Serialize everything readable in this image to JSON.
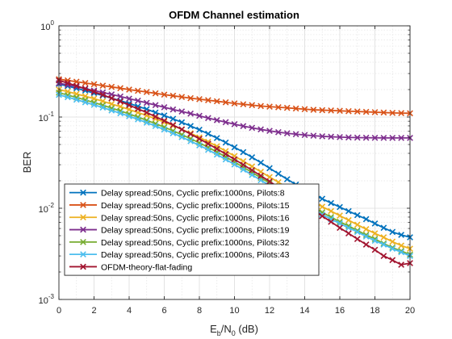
{
  "chart_data": {
    "type": "line",
    "title": "OFDM Channel estimation",
    "xlabel": {
      "base": "E",
      "sub1": "b",
      "mid": "/N",
      "sub2": "0",
      "tail": " (dB)"
    },
    "ylabel": "BER",
    "xlim": [
      0,
      20
    ],
    "ylim": [
      0.001,
      1
    ],
    "yscale": "log",
    "grid": true,
    "minor_grid": true,
    "legend_position": "bottom-left",
    "x_ticks": [
      0,
      2,
      4,
      6,
      8,
      10,
      12,
      14,
      16,
      18,
      20
    ],
    "x_tick_labels": [
      "0",
      "2",
      "4",
      "6",
      "8",
      "10",
      "12",
      "14",
      "16",
      "18",
      "20"
    ],
    "y_ticks": [
      {
        "value": 1,
        "base": "10",
        "exp": "0"
      },
      {
        "value": 0.1,
        "base": "10",
        "exp": "-1"
      },
      {
        "value": 0.01,
        "base": "10",
        "exp": "-2"
      },
      {
        "value": 0.001,
        "base": "10",
        "exp": "-3"
      }
    ],
    "x": [
      0,
      0.5,
      1,
      1.5,
      2,
      2.5,
      3,
      3.5,
      4,
      4.5,
      5,
      5.5,
      6,
      6.5,
      7,
      7.5,
      8,
      8.5,
      9,
      9.5,
      10,
      10.5,
      11,
      11.5,
      12,
      12.5,
      13,
      13.5,
      14,
      14.5,
      15,
      15.5,
      16,
      16.5,
      17,
      17.5,
      18,
      18.5,
      19,
      19.5,
      20
    ],
    "series": [
      {
        "name": "Delay spread:50ns, Cyclic prefix:1000ns, Pilots:8",
        "color": "#0072BD",
        "values": [
          0.23,
          0.218,
          0.206,
          0.195,
          0.183,
          0.172,
          0.161,
          0.151,
          0.141,
          0.131,
          0.122,
          0.112,
          0.104,
          0.0955,
          0.0875,
          0.0798,
          0.0725,
          0.0655,
          0.0588,
          0.0525,
          0.0466,
          0.0412,
          0.0362,
          0.0316,
          0.0275,
          0.0239,
          0.0208,
          0.0182,
          0.016,
          0.0142,
          0.0127,
          0.0114,
          0.0103,
          0.0093,
          0.0084,
          0.0076,
          0.0068,
          0.0061,
          0.0055,
          0.0051,
          0.0048
        ]
      },
      {
        "name": "Delay spread:50ns, Cyclic prefix:1000ns, Pilots:15",
        "color": "#D95319",
        "values": [
          0.26,
          0.252,
          0.244,
          0.236,
          0.229,
          0.221,
          0.214,
          0.207,
          0.2,
          0.194,
          0.188,
          0.182,
          0.176,
          0.171,
          0.166,
          0.161,
          0.157,
          0.153,
          0.149,
          0.145,
          0.141,
          0.138,
          0.135,
          0.132,
          0.13,
          0.128,
          0.126,
          0.124,
          0.122,
          0.12,
          0.119,
          0.118,
          0.117,
          0.116,
          0.115,
          0.114,
          0.113,
          0.112,
          0.111,
          0.1105,
          0.11
        ]
      },
      {
        "name": "Delay spread:50ns, Cyclic prefix:1000ns, Pilots:16",
        "color": "#EDB120",
        "values": [
          0.2,
          0.19,
          0.179,
          0.169,
          0.159,
          0.149,
          0.139,
          0.13,
          0.121,
          0.112,
          0.104,
          0.0957,
          0.0879,
          0.0804,
          0.0732,
          0.0664,
          0.0598,
          0.0536,
          0.0478,
          0.0423,
          0.0373,
          0.0328,
          0.0287,
          0.0251,
          0.022,
          0.0193,
          0.0169,
          0.0149,
          0.0132,
          0.0117,
          0.0104,
          0.0093,
          0.0083,
          0.0074,
          0.0066,
          0.0059,
          0.0053,
          0.0048,
          0.0043,
          0.0039,
          0.0036
        ]
      },
      {
        "name": "Delay spread:50ns, Cyclic prefix:1000ns, Pilots:19",
        "color": "#7E2F8E",
        "values": [
          0.235,
          0.225,
          0.215,
          0.205,
          0.195,
          0.186,
          0.177,
          0.168,
          0.159,
          0.151,
          0.143,
          0.135,
          0.128,
          0.121,
          0.115,
          0.109,
          0.103,
          0.0975,
          0.0925,
          0.0878,
          0.0835,
          0.0796,
          0.0762,
          0.0732,
          0.0706,
          0.0683,
          0.0664,
          0.0648,
          0.0635,
          0.0624,
          0.0615,
          0.0608,
          0.0602,
          0.0598,
          0.0595,
          0.0593,
          0.0592,
          0.0591,
          0.059,
          0.059,
          0.059
        ]
      },
      {
        "name": "Delay spread:50ns, Cyclic prefix:1000ns, Pilots:32",
        "color": "#77AC30",
        "values": [
          0.185,
          0.174,
          0.164,
          0.154,
          0.144,
          0.135,
          0.125,
          0.117,
          0.108,
          0.1,
          0.092,
          0.0846,
          0.0774,
          0.0706,
          0.0641,
          0.0579,
          0.0521,
          0.0466,
          0.0414,
          0.0366,
          0.0322,
          0.0282,
          0.0247,
          0.0216,
          0.0189,
          0.0166,
          0.0146,
          0.0129,
          0.0114,
          0.0101,
          0.009,
          0.008,
          0.0071,
          0.0064,
          0.0057,
          0.0051,
          0.0046,
          0.0041,
          0.0037,
          0.0034,
          0.0031
        ]
      },
      {
        "name": "Delay spread:50ns, Cyclic prefix:1000ns, Pilots:43",
        "color": "#4DBEEE",
        "values": [
          0.175,
          0.165,
          0.155,
          0.145,
          0.136,
          0.127,
          0.118,
          0.11,
          0.102,
          0.0943,
          0.0868,
          0.0797,
          0.0729,
          0.0664,
          0.0603,
          0.0544,
          0.0489,
          0.0437,
          0.0388,
          0.0343,
          0.0302,
          0.0265,
          0.0232,
          0.0203,
          0.0178,
          0.0156,
          0.0137,
          0.0121,
          0.0107,
          0.0095,
          0.0085,
          0.0076,
          0.0068,
          0.0061,
          0.0055,
          0.0049,
          0.0044,
          0.004,
          0.0036,
          0.0033,
          0.003
        ]
      },
      {
        "name": "OFDM-theory-flat-fading",
        "color": "#A2142F",
        "values": [
          0.252,
          0.236,
          0.22,
          0.204,
          0.189,
          0.175,
          0.161,
          0.148,
          0.135,
          0.123,
          0.112,
          0.101,
          0.0911,
          0.0818,
          0.0731,
          0.0651,
          0.0577,
          0.0509,
          0.0448,
          0.0393,
          0.0344,
          0.03,
          0.0261,
          0.0227,
          0.0197,
          0.017,
          0.0147,
          0.0127,
          0.011,
          0.0095,
          0.0082,
          0.0071,
          0.0061,
          0.0053,
          0.0046,
          0.004,
          0.0035,
          0.003,
          0.0027,
          0.0024,
          0.0025
        ]
      }
    ]
  }
}
